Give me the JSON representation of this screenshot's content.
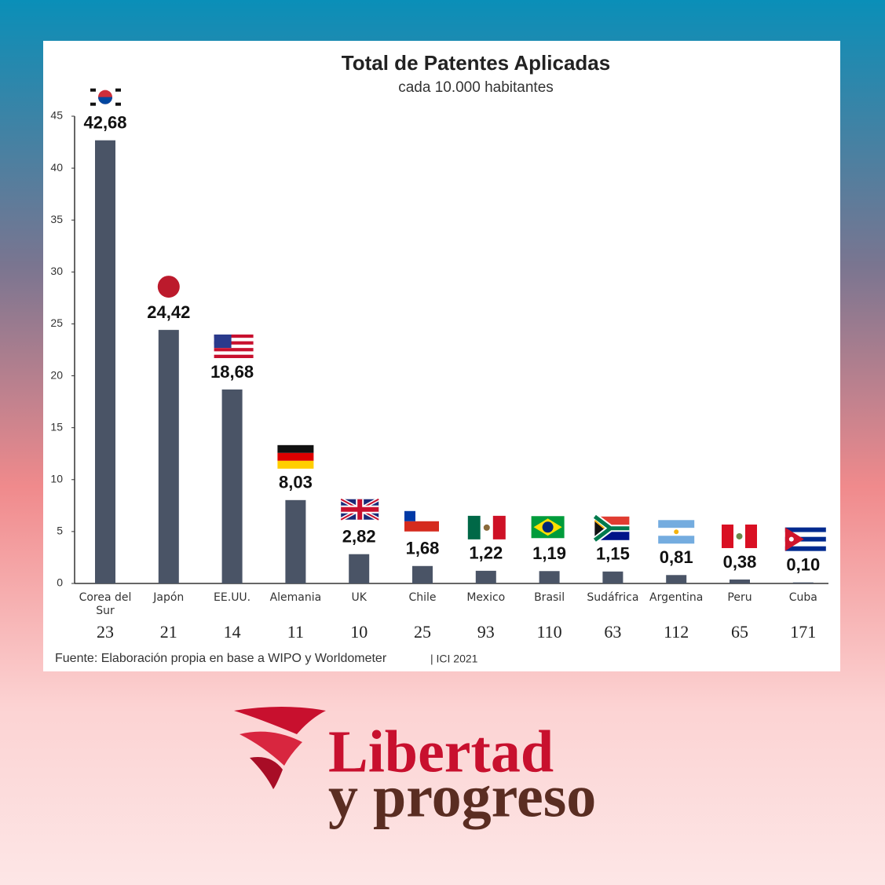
{
  "chart_data": {
    "type": "bar",
    "title": "Total de Patentes Aplicadas",
    "subtitle": "cada 10.000 habitantes",
    "categories": [
      "Corea del Sur",
      "Japón",
      "EE.UU.",
      "Alemania",
      "UK",
      "Chile",
      "Mexico",
      "Brasil",
      "Sudáfrica",
      "Argentina",
      "Peru",
      "Cuba"
    ],
    "values": [
      42.68,
      24.42,
      18.68,
      8.03,
      2.82,
      1.68,
      1.22,
      1.19,
      1.15,
      0.81,
      0.38,
      0.1
    ],
    "value_labels": [
      "42,68",
      "24,42",
      "18,68",
      "8,03",
      "2,82",
      "1,68",
      "1,22",
      "1,19",
      "1,15",
      "0,81",
      "0,38",
      "0,10"
    ],
    "ranks": [
      23,
      21,
      14,
      11,
      10,
      25,
      93,
      110,
      63,
      112,
      65,
      171
    ],
    "color": "#4a5466",
    "ylim": [
      0,
      45
    ],
    "yticks": [
      0,
      5,
      10,
      15,
      20,
      25,
      30,
      35,
      40,
      45
    ],
    "grid": false,
    "source": "Fuente: Elaboración propia en base a WIPO y Worldometer",
    "credit": "| ICI 2021"
  },
  "brand": {
    "line1": "Libertad",
    "line2": "y progreso"
  }
}
